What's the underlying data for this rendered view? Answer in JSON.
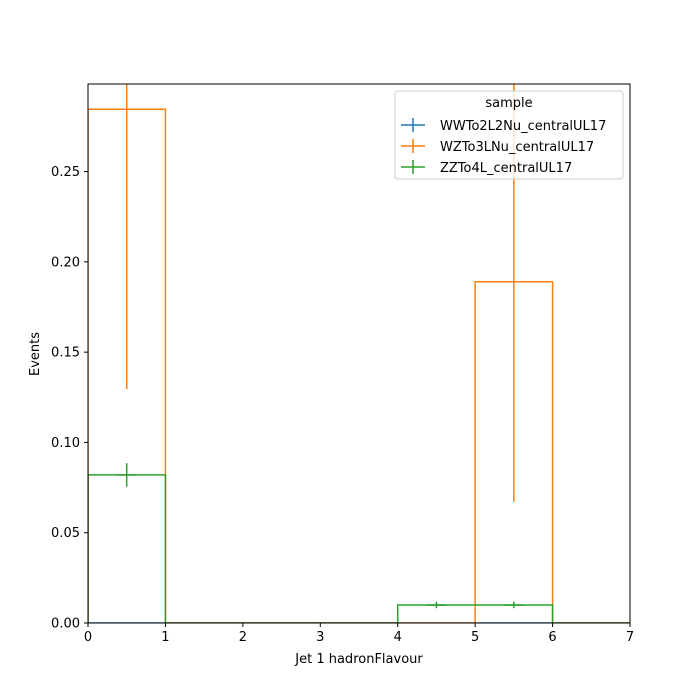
{
  "chart_data": {
    "type": "histogram",
    "xlabel": "Jet 1 hadronFlavour",
    "ylabel": "Events",
    "xlim": [
      0,
      7
    ],
    "ylim": [
      0,
      0.2985
    ],
    "xticks": [
      0,
      1,
      2,
      3,
      4,
      5,
      6,
      7
    ],
    "yticks": [
      0.0,
      0.05,
      0.1,
      0.15,
      0.2,
      0.25
    ],
    "ytick_labels": [
      "0.00",
      "0.05",
      "0.10",
      "0.15",
      "0.20",
      "0.25"
    ],
    "bin_edges": [
      0,
      1,
      2,
      3,
      4,
      5,
      6,
      7
    ],
    "legend": {
      "title": "sample",
      "placement": "upper right"
    },
    "series": [
      {
        "name": "WWTo2L2Nu_centralUL17",
        "color": "#1f77b4",
        "values": [
          0,
          0,
          0,
          0,
          0,
          0,
          0
        ],
        "errors": [
          0,
          0,
          0,
          0,
          0,
          0,
          0
        ]
      },
      {
        "name": "WZTo3LNu_centralUL17",
        "color": "#ff7f0e",
        "values": [
          0.2845,
          0,
          0,
          0,
          0,
          0.189,
          0
        ],
        "errors": [
          0.155,
          0,
          0,
          0,
          0,
          0.122,
          0
        ]
      },
      {
        "name": "ZZTo4L_centralUL17",
        "color": "#2ca02c",
        "values": [
          0.082,
          0,
          0,
          0,
          0.01,
          0.01,
          0
        ],
        "errors": [
          0.0065,
          0,
          0,
          0,
          0.0018,
          0.0018,
          0
        ]
      }
    ]
  }
}
